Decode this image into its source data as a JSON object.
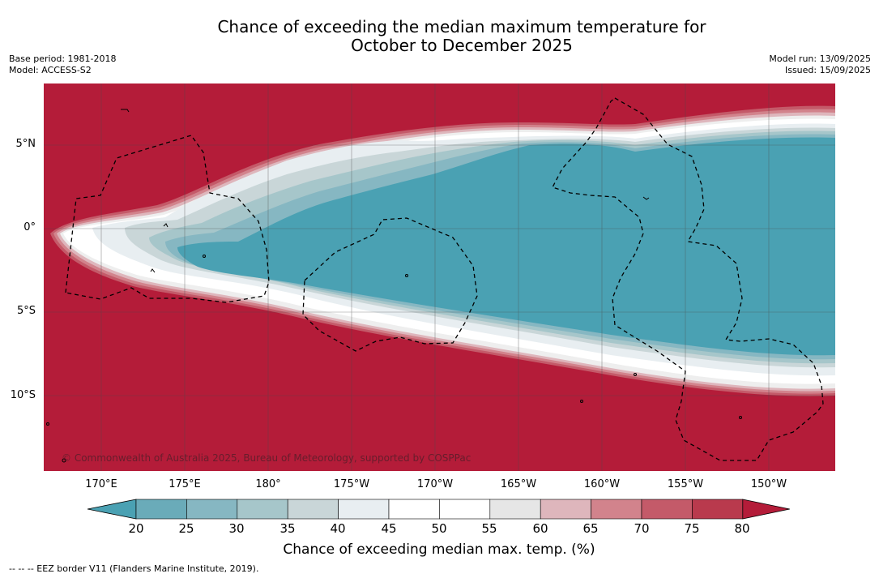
{
  "title_line1": "Chance of exceeding the median maximum temperature for",
  "title_line2": "October to December 2025",
  "base_period": "Base period: 1981-2018",
  "model": "Model: ACCESS-S2",
  "model_run": "Model run: 13/09/2025",
  "issued": "Issued: 15/09/2025",
  "lat_labels": [
    "5°N",
    "0°",
    "5°S",
    "10°S"
  ],
  "lon_labels": [
    "170°E",
    "175°E",
    "180°",
    "175°W",
    "170°W",
    "165°W",
    "160°W",
    "155°W",
    "150°W"
  ],
  "colorbar": {
    "ticks": [
      "20",
      "25",
      "30",
      "35",
      "40",
      "45",
      "50",
      "55",
      "60",
      "65",
      "70",
      "75",
      "80"
    ],
    "colors": [
      "#4aa1b3",
      "#6aabb9",
      "#86b7c2",
      "#a6c6ca",
      "#c9d6d8",
      "#e8eef1",
      "#ffffff",
      "#ffffff",
      "#e6e6e6",
      "#deb6bc",
      "#d2838c",
      "#c45a69",
      "#b93a4d",
      "#b41c39"
    ],
    "label": "Chance of exceeding median max. temp. (%)"
  },
  "copyright": "© Commonwealth of Australia 2025, Bureau of Meteorology, supported by COSPPac",
  "legend": "--  --  -- EEZ border V11 (Flanders Marine Institute, 2019)."
}
